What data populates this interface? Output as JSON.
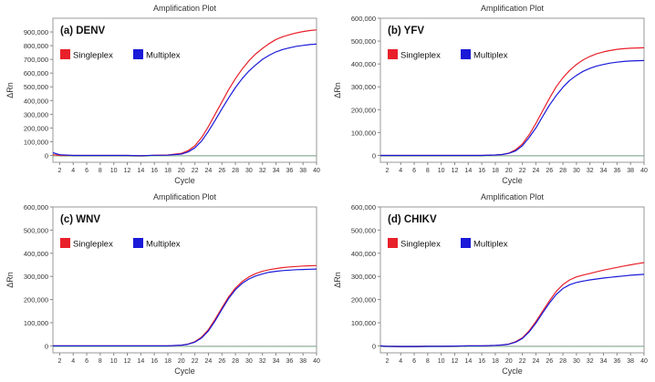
{
  "legend": {
    "singleplex": "Singleplex",
    "multiplex": "Multiplex"
  },
  "colors": {
    "singleplex": "#e8202a",
    "multiplex": "#1a1ad8",
    "threshold": "#9aa0a6",
    "baseline": "#2a9d3a"
  },
  "chart_data": [
    {
      "type": "line",
      "panel": "(a) DENV",
      "title": "Amplification Plot",
      "xlabel": "Cycle",
      "ylabel": "ΔRn",
      "xlim": [
        1,
        40
      ],
      "ylim": [
        -50000,
        1000000
      ],
      "yticks": [
        0,
        100000,
        200000,
        300000,
        400000,
        500000,
        600000,
        700000,
        800000,
        900000
      ],
      "ytick_labels": [
        "0",
        "100,000",
        "200,000",
        "300,000",
        "400,000",
        "500,000",
        "600,000",
        "700,000",
        "800,000",
        "900,000"
      ],
      "xticks": [
        2,
        4,
        6,
        8,
        10,
        12,
        14,
        16,
        18,
        20,
        22,
        24,
        26,
        28,
        30,
        32,
        34,
        36,
        38,
        40
      ],
      "x": [
        1,
        2,
        4,
        6,
        8,
        10,
        12,
        14,
        16,
        18,
        20,
        21,
        22,
        23,
        24,
        25,
        26,
        27,
        28,
        29,
        30,
        31,
        32,
        33,
        34,
        35,
        36,
        37,
        38,
        39,
        40
      ],
      "series": [
        {
          "name": "Singleplex",
          "values": [
            5000,
            0,
            0,
            0,
            0,
            0,
            0,
            -2000,
            1000,
            3000,
            15000,
            35000,
            70000,
            130000,
            210000,
            300000,
            390000,
            480000,
            560000,
            630000,
            690000,
            740000,
            780000,
            815000,
            845000,
            865000,
            880000,
            893000,
            903000,
            910000,
            915000
          ]
        },
        {
          "name": "Multiplex",
          "values": [
            20000,
            5000,
            0,
            0,
            0,
            0,
            0,
            -2000,
            1000,
            2000,
            10000,
            25000,
            55000,
            105000,
            175000,
            255000,
            340000,
            420000,
            495000,
            560000,
            615000,
            660000,
            700000,
            730000,
            755000,
            772000,
            785000,
            795000,
            802000,
            808000,
            812000
          ]
        }
      ],
      "threshold": 0
    },
    {
      "type": "line",
      "panel": "(b) YFV",
      "title": "Amplification Plot",
      "xlabel": "Cycle",
      "ylabel": "ΔRn",
      "xlim": [
        1,
        40
      ],
      "ylim": [
        -30000,
        600000
      ],
      "yticks": [
        0,
        100000,
        200000,
        300000,
        400000,
        500000,
        600000
      ],
      "ytick_labels": [
        "0",
        "100,000",
        "200,000",
        "300,000",
        "400,000",
        "500,000",
        "600,000"
      ],
      "xticks": [
        2,
        4,
        6,
        8,
        10,
        12,
        14,
        16,
        18,
        20,
        22,
        24,
        26,
        28,
        30,
        32,
        34,
        36,
        38,
        40
      ],
      "x": [
        1,
        2,
        4,
        6,
        8,
        10,
        12,
        14,
        16,
        18,
        19,
        20,
        21,
        22,
        23,
        24,
        25,
        26,
        27,
        28,
        29,
        30,
        31,
        32,
        33,
        34,
        35,
        36,
        37,
        38,
        39,
        40
      ],
      "series": [
        {
          "name": "Singleplex",
          "values": [
            0,
            0,
            0,
            0,
            0,
            0,
            0,
            0,
            0,
            2000,
            4000,
            10000,
            25000,
            50000,
            90000,
            140000,
            195000,
            250000,
            300000,
            340000,
            372000,
            398000,
            418000,
            433000,
            445000,
            453000,
            459000,
            464000,
            467000,
            469000,
            470000,
            471000
          ]
        },
        {
          "name": "Multiplex",
          "values": [
            0,
            0,
            0,
            0,
            0,
            0,
            0,
            0,
            0,
            2000,
            4000,
            9000,
            20000,
            42000,
            78000,
            120000,
            170000,
            220000,
            262000,
            298000,
            328000,
            350000,
            368000,
            381000,
            391000,
            398000,
            404000,
            408000,
            411000,
            413000,
            414000,
            415000
          ]
        }
      ],
      "threshold": 0
    },
    {
      "type": "line",
      "panel": "(c) WNV",
      "title": "Amplification Plot",
      "xlabel": "Cycle",
      "ylabel": "ΔRn",
      "xlim": [
        1,
        40
      ],
      "ylim": [
        -30000,
        600000
      ],
      "yticks": [
        0,
        100000,
        200000,
        300000,
        400000,
        500000,
        600000
      ],
      "ytick_labels": [
        "0",
        "100,000",
        "200,000",
        "300,000",
        "400,000",
        "500,000",
        "600,000"
      ],
      "xticks": [
        2,
        4,
        6,
        8,
        10,
        12,
        14,
        16,
        18,
        20,
        22,
        24,
        26,
        28,
        30,
        32,
        34,
        36,
        38,
        40
      ],
      "x": [
        1,
        2,
        4,
        6,
        8,
        10,
        12,
        14,
        16,
        18,
        20,
        21,
        22,
        23,
        24,
        25,
        26,
        27,
        28,
        29,
        30,
        31,
        32,
        33,
        34,
        35,
        36,
        37,
        38,
        39,
        40
      ],
      "series": [
        {
          "name": "Singleplex",
          "values": [
            0,
            0,
            0,
            0,
            0,
            0,
            0,
            0,
            0,
            0,
            3000,
            8000,
            18000,
            38000,
            70000,
            115000,
            165000,
            212000,
            250000,
            278000,
            298000,
            312000,
            322000,
            329000,
            334000,
            338000,
            341000,
            343000,
            345000,
            346000,
            347000
          ]
        },
        {
          "name": "Multiplex",
          "values": [
            0,
            0,
            0,
            0,
            0,
            0,
            0,
            0,
            0,
            0,
            3000,
            7000,
            16000,
            34000,
            64000,
            108000,
            158000,
            205000,
            243000,
            270000,
            289000,
            302000,
            311000,
            318000,
            322000,
            325000,
            327000,
            329000,
            330000,
            331000,
            332000
          ]
        }
      ],
      "threshold": 0
    },
    {
      "type": "line",
      "panel": "(d) CHIKV",
      "title": "Amplification Plot",
      "xlabel": "Cycle",
      "ylabel": "ΔRn",
      "xlim": [
        1,
        40
      ],
      "ylim": [
        -30000,
        600000
      ],
      "yticks": [
        0,
        100000,
        200000,
        300000,
        400000,
        500000,
        600000
      ],
      "ytick_labels": [
        "0",
        "100,000",
        "200,000",
        "300,000",
        "400,000",
        "500,000",
        "600,000"
      ],
      "xticks": [
        2,
        4,
        6,
        8,
        10,
        12,
        14,
        16,
        18,
        20,
        22,
        24,
        26,
        28,
        30,
        32,
        34,
        36,
        38,
        40
      ],
      "x": [
        1,
        2,
        4,
        6,
        8,
        10,
        12,
        14,
        16,
        18,
        19,
        20,
        21,
        22,
        23,
        24,
        25,
        26,
        27,
        28,
        29,
        30,
        31,
        32,
        33,
        34,
        35,
        36,
        37,
        38,
        39,
        40
      ],
      "series": [
        {
          "name": "Singleplex",
          "values": [
            0,
            -2000,
            -3000,
            -3000,
            -2000,
            -2000,
            -1000,
            0,
            0,
            2000,
            4000,
            8000,
            18000,
            35000,
            65000,
            105000,
            150000,
            195000,
            235000,
            265000,
            285000,
            298000,
            306000,
            313000,
            320000,
            327000,
            333000,
            339000,
            345000,
            350000,
            355000,
            360000
          ]
        },
        {
          "name": "Multiplex",
          "values": [
            0,
            -2000,
            -3000,
            -3000,
            -2000,
            -2000,
            -1000,
            0,
            0,
            2000,
            4000,
            7000,
            16000,
            32000,
            60000,
            98000,
            142000,
            185000,
            222000,
            248000,
            264000,
            274000,
            280000,
            285000,
            289000,
            293000,
            296000,
            299000,
            302000,
            305000,
            307000,
            309000
          ]
        }
      ],
      "threshold": 0
    }
  ]
}
